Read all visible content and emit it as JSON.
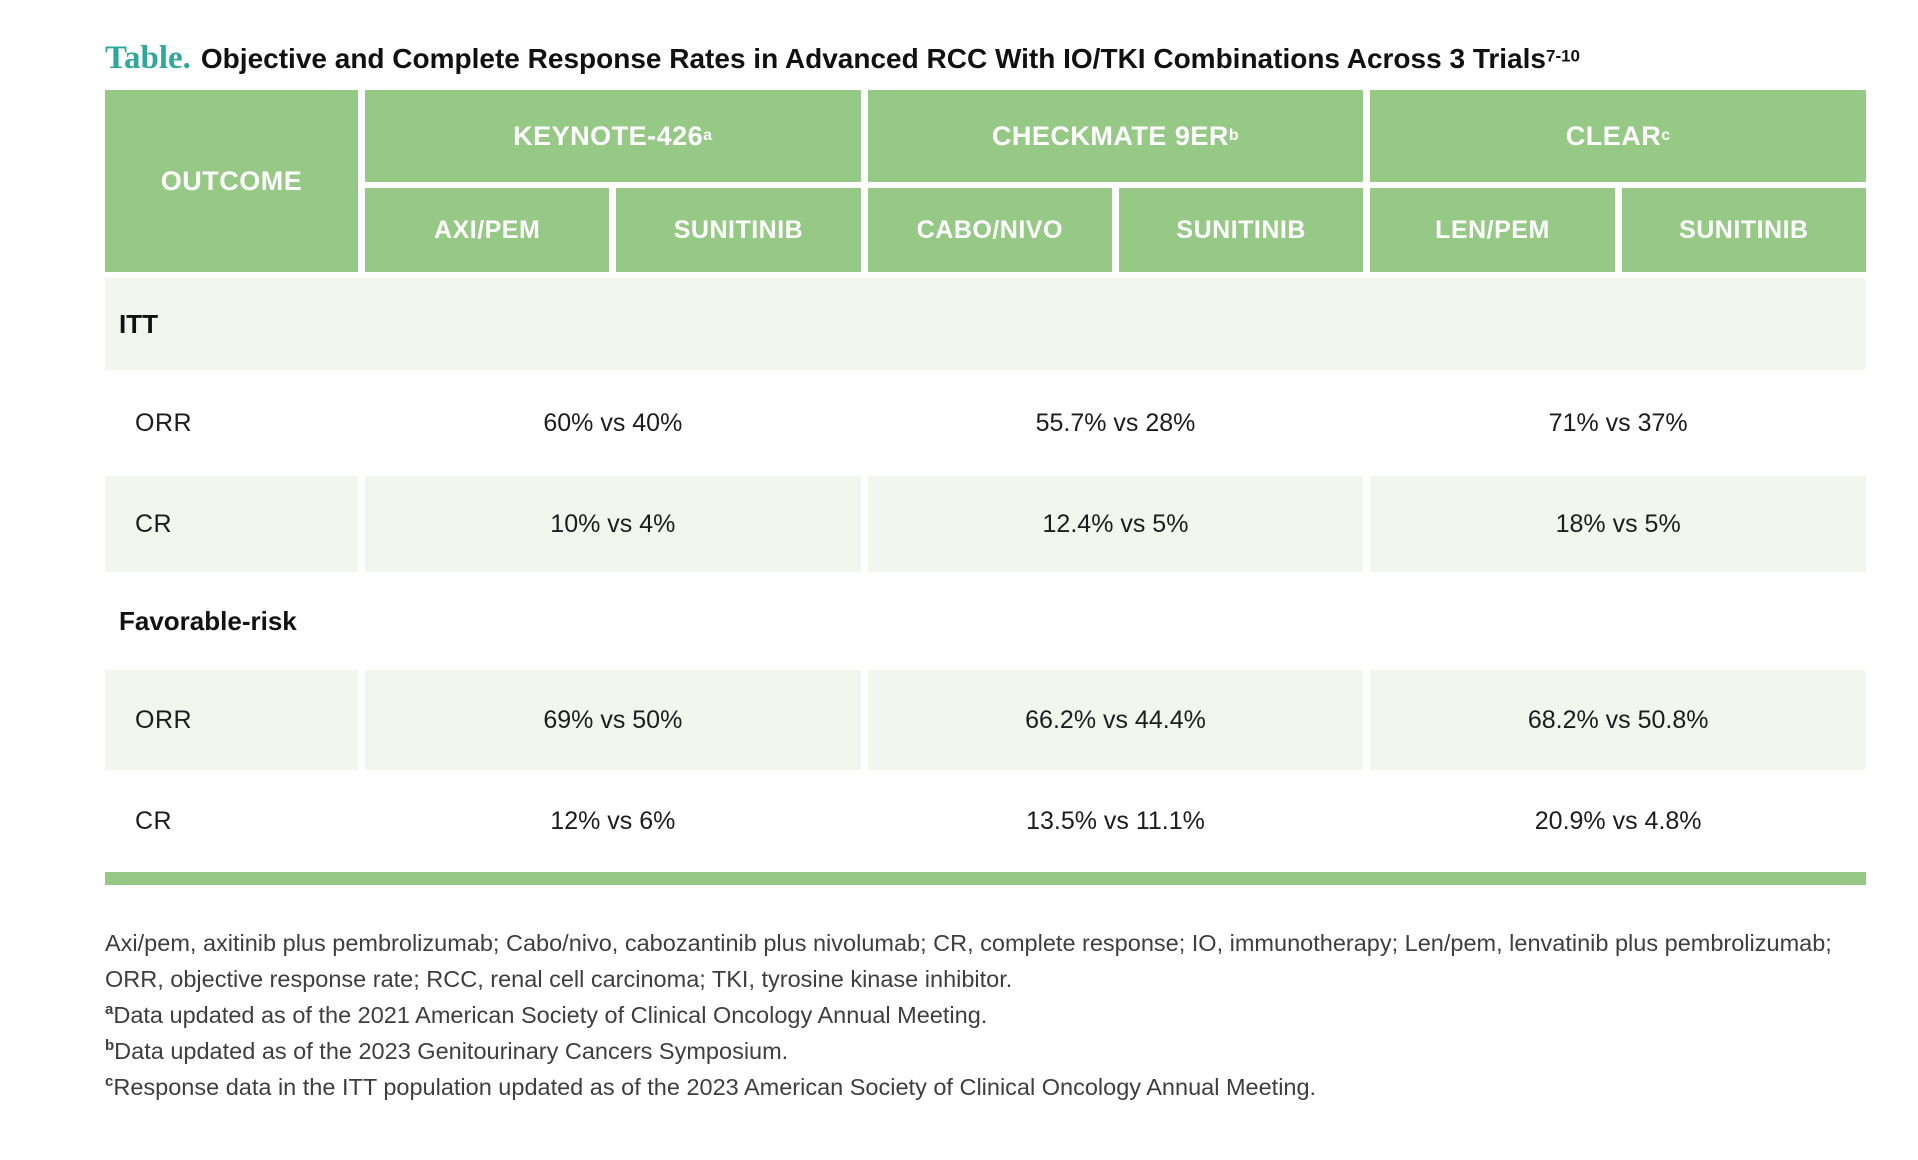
{
  "title": {
    "prefix": "Table.",
    "text": "Objective and Complete Response Rates in Advanced RCC With IO/TKI Combinations Across 3 Trials",
    "citation": "7-10"
  },
  "table": {
    "outcome_header": "OUTCOME",
    "trials": [
      {
        "name": "KEYNOTE-426",
        "footnote_ref": "a",
        "arms": [
          "AXI/PEM",
          "SUNITINIB"
        ]
      },
      {
        "name": "CHECKMATE 9ER",
        "footnote_ref": "b",
        "arms": [
          "CABO/NIVO",
          "SUNITINIB"
        ]
      },
      {
        "name": "CLEAR",
        "footnote_ref": "c",
        "arms": [
          "LEN/PEM",
          "SUNITINIB"
        ]
      }
    ],
    "sections": [
      {
        "label": "ITT",
        "rows": [
          {
            "label": "ORR",
            "values": [
              "60% vs 40%",
              "55.7% vs 28%",
              "71% vs 37%"
            ]
          },
          {
            "label": "CR",
            "values": [
              "10% vs 4%",
              "12.4% vs 5%",
              "18% vs 5%"
            ]
          }
        ]
      },
      {
        "label": "Favorable-risk",
        "rows": [
          {
            "label": "ORR",
            "values": [
              "69% vs 50%",
              "66.2% vs 44.4%",
              "68.2% vs 50.8%"
            ]
          },
          {
            "label": "CR",
            "values": [
              "12% vs 6%",
              "13.5% vs 11.1%",
              "20.9% vs 4.8%"
            ]
          }
        ]
      }
    ]
  },
  "footnotes": {
    "abbreviations": "Axi/pem, axitinib plus pembrolizumab; Cabo/nivo, cabozantinib plus nivolumab; CR, complete response; IO, immunotherapy; Len/pem, lenvatinib plus pembrolizumab; ORR, objective response rate; RCC, renal cell carcinoma;  TKI, tyrosine kinase inhibitor.",
    "notes": [
      {
        "ref": "a",
        "text": "Data updated as of the 2021 American Society of Clinical Oncology Annual Meeting."
      },
      {
        "ref": "b",
        "text": "Data updated as of the 2023 Genitourinary Cancers Symposium."
      },
      {
        "ref": "c",
        "text": "Response data in the ITT population updated as of the 2023 American Society of Clinical Oncology Annual Meeting."
      }
    ]
  },
  "colors": {
    "header_green": "#97c986",
    "row_tint": "#f2f6ef",
    "accent_teal": "#2fa89b"
  },
  "chart_data": {
    "type": "table",
    "title": "Objective and Complete Response Rates in Advanced RCC With IO/TKI Combinations Across 3 Trials",
    "columns": [
      "OUTCOME",
      "KEYNOTE-426 AXI/PEM vs SUNITINIB",
      "CHECKMATE 9ER CABO/NIVO vs SUNITINIB",
      "CLEAR LEN/PEM vs SUNITINIB"
    ],
    "rows": [
      [
        "ITT ORR",
        "60% vs 40%",
        "55.7% vs 28%",
        "71% vs 37%"
      ],
      [
        "ITT CR",
        "10% vs 4%",
        "12.4% vs 5%",
        "18% vs 5%"
      ],
      [
        "Favorable-risk ORR",
        "69% vs 50%",
        "66.2% vs 44.4%",
        "68.2% vs 50.8%"
      ],
      [
        "Favorable-risk CR",
        "12% vs 6%",
        "13.5% vs 11.1%",
        "20.9% vs 4.8%"
      ]
    ]
  }
}
